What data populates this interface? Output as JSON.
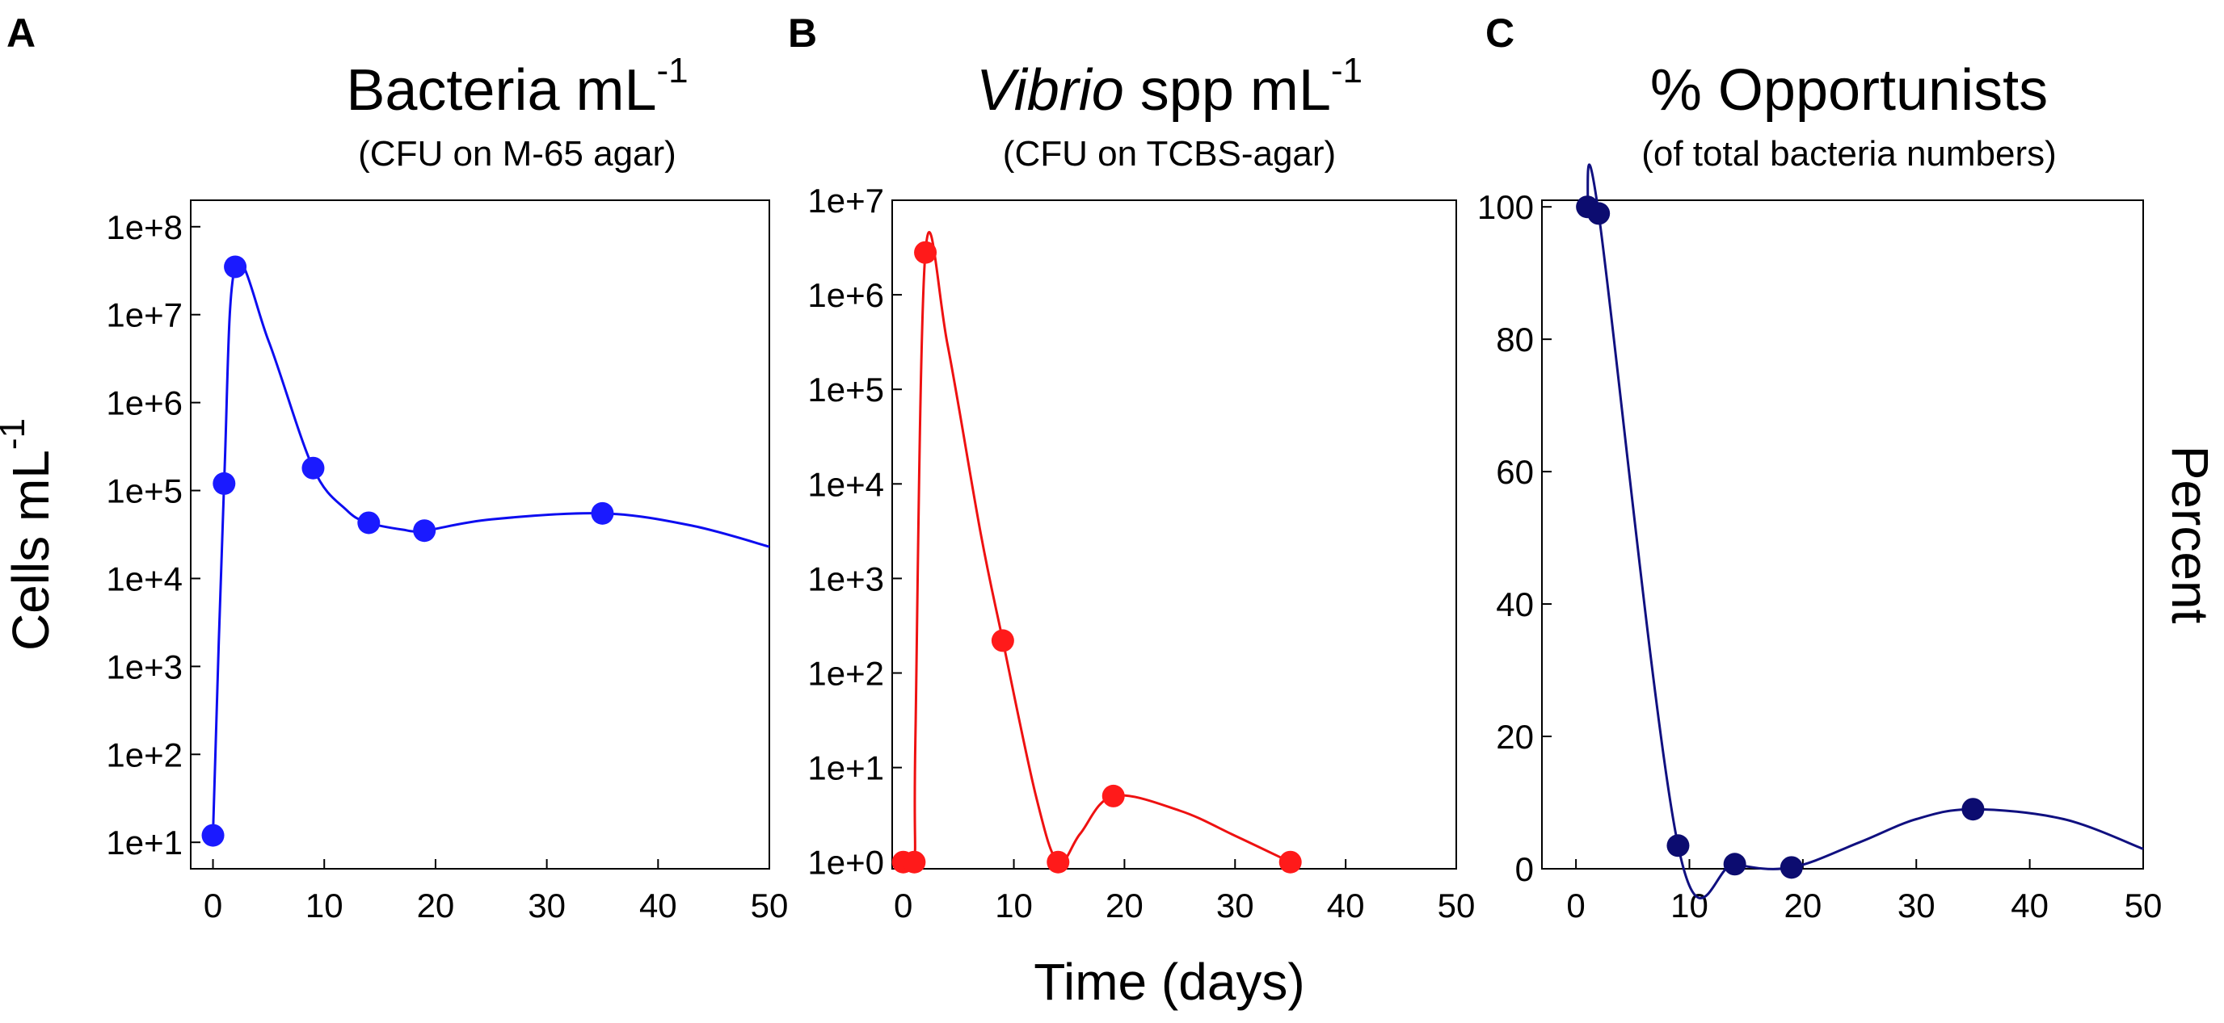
{
  "xlabel": "Time (days)",
  "chart_data": [
    {
      "type": "line",
      "panel": "A",
      "title": "Bacteria mL",
      "title_superscript": "-1",
      "subtitle": "(CFU on M-65 agar)",
      "ylabel": "Cells mL",
      "ylabel_superscript": "-1",
      "xlabel": "Time (days)",
      "yscale": "log",
      "xlim": [
        -2,
        50
      ],
      "ylim": [
        5,
        200000000
      ],
      "xticks": [
        0,
        10,
        20,
        30,
        40,
        50
      ],
      "xtick_labels": [
        "0",
        "10",
        "20",
        "30",
        "40",
        "50"
      ],
      "yticks": [
        10,
        100,
        1000,
        10000,
        100000,
        1000000,
        10000000,
        100000000
      ],
      "ytick_labels": [
        "1e+1",
        "1e+2",
        "1e+3",
        "1e+4",
        "1e+5",
        "1e+6",
        "1e+7",
        "1e+8"
      ],
      "color": "#0d0df0",
      "marker_color": "#1a1aff",
      "series": [
        {
          "name": "Bacteria mL-1",
          "x": [
            0,
            1,
            2,
            9,
            14,
            19,
            35
          ],
          "y": [
            12,
            120000,
            35000000,
            180000,
            43000,
            35000,
            55000
          ]
        }
      ],
      "curve": {
        "x": [
          0,
          1,
          2,
          5,
          9,
          12,
          14,
          17,
          19,
          25,
          35,
          43,
          50
        ],
        "y": [
          12,
          120000,
          35000000,
          5000000,
          180000,
          60000,
          43000,
          36000,
          35000,
          47000,
          55000,
          40000,
          23000
        ]
      }
    },
    {
      "type": "line",
      "panel": "B",
      "title_italic": "Vibrio",
      "title": " spp mL",
      "title_superscript": "-1",
      "subtitle": "(CFU on TCBS-agar)",
      "ylabel": "",
      "xlabel": "Time (days)",
      "yscale": "log",
      "xlim": [
        -1,
        50
      ],
      "ylim": [
        0.85,
        10000000
      ],
      "xticks": [
        0,
        10,
        20,
        30,
        40,
        50
      ],
      "xtick_labels": [
        "0",
        "10",
        "20",
        "30",
        "40",
        "50"
      ],
      "yticks": [
        1,
        10,
        100,
        1000,
        10000,
        100000,
        1000000,
        10000000
      ],
      "ytick_labels": [
        "1e+0",
        "1e+1",
        "1e+2",
        "1e+3",
        "1e+4",
        "1e+5",
        "1e+6",
        "1e+7"
      ],
      "color": "#ee1111",
      "marker_color": "#ff1a1a",
      "series": [
        {
          "name": "Vibrio spp mL-1",
          "x": [
            0,
            1,
            2,
            9,
            14,
            19,
            35
          ],
          "y": [
            1,
            1,
            2800000,
            220,
            1,
            5,
            1
          ]
        }
      ],
      "curve": {
        "x": [
          0,
          1,
          1.1,
          2,
          4,
          7,
          9,
          12,
          14,
          16,
          19,
          25,
          30,
          35
        ],
        "y": [
          1,
          1,
          20,
          2800000,
          300000,
          3000,
          220,
          5,
          1,
          2,
          5,
          3.5,
          1.9,
          1
        ]
      }
    },
    {
      "type": "line",
      "panel": "C",
      "title": "% Opportunists",
      "subtitle": "(of total bacteria numbers)",
      "ylabel": "Percent",
      "ylabel_position": "right",
      "xlabel": "",
      "yscale": "linear",
      "xlim": [
        -3,
        50
      ],
      "ylim": [
        0,
        101
      ],
      "xticks": [
        0,
        10,
        20,
        30,
        40,
        50
      ],
      "xtick_labels": [
        "0",
        "10",
        "20",
        "30",
        "40",
        "50"
      ],
      "yticks": [
        0,
        20,
        40,
        60,
        80,
        100
      ],
      "ytick_labels": [
        "0",
        "20",
        "40",
        "60",
        "80",
        "100"
      ],
      "color": "#101080",
      "marker_color": "#0c0c70",
      "series": [
        {
          "name": "% Opportunists",
          "x": [
            1,
            2,
            9,
            14,
            19,
            35
          ],
          "y": [
            100,
            99,
            3.5,
            0.7,
            0.2,
            9
          ]
        }
      ],
      "curve": {
        "x": [
          1,
          2,
          9,
          14,
          19,
          25,
          30,
          35,
          43,
          50
        ],
        "y": [
          100,
          99,
          3.5,
          0.7,
          0.2,
          4,
          7.5,
          9,
          7.5,
          3
        ]
      }
    }
  ]
}
